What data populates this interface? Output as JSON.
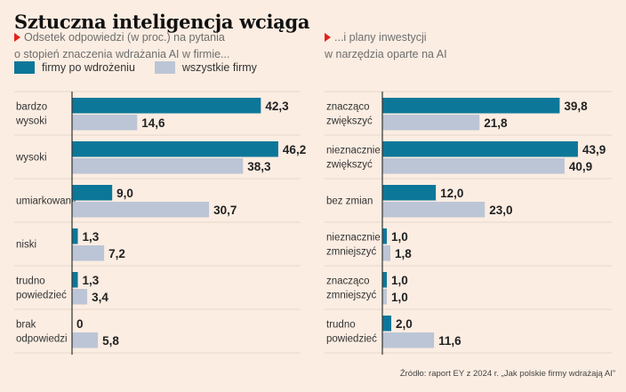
{
  "title": "Sztuczna inteligencja wciąga",
  "left_subtitle": [
    "Odsetek odpowiedzi (w proc.) na pytania",
    "o stopień znaczenia wdrażania AI w firmie..."
  ],
  "right_subtitle": [
    "...i plany inwestycji",
    "w narzędzia oparte na AI"
  ],
  "legend": [
    {
      "label": "firmy po wdrożeniu",
      "color": "#0d7799"
    },
    {
      "label": "wszystkie firmy",
      "color": "#bcc5d6"
    }
  ],
  "source": "Źródło: raport EY z 2024 r. „Jak polskie firmy wdrażają AI”",
  "chart_data": [
    {
      "type": "bar",
      "orientation": "horizontal",
      "title": "Odsetek odpowiedzi (w proc.) na pytania o stopień znaczenia wdrażania AI w firmie...",
      "categories": [
        [
          "bardzo",
          "wysoki"
        ],
        [
          "wysoki"
        ],
        [
          "umiarkowany"
        ],
        [
          "niski"
        ],
        [
          "trudno",
          "powiedzieć"
        ],
        [
          "brak",
          "odpowiedzi"
        ]
      ],
      "series": [
        {
          "name": "firmy po wdrożeniu",
          "values": [
            42.3,
            46.2,
            9.0,
            1.3,
            1.3,
            0
          ],
          "labels": [
            "42,3",
            "46,2",
            "9,0",
            "1,3",
            "1,3",
            "0"
          ]
        },
        {
          "name": "wszystkie firmy",
          "values": [
            14.6,
            38.3,
            30.7,
            7.2,
            3.4,
            5.8
          ],
          "labels": [
            "14,6",
            "38,3",
            "30,7",
            "7,2",
            "3,4",
            "5,8"
          ]
        }
      ],
      "unit": "%",
      "grid": false
    },
    {
      "type": "bar",
      "orientation": "horizontal",
      "title": "...i plany inwestycji w narzędzia oparte na AI",
      "categories": [
        [
          "znacząco",
          "zwiększyć"
        ],
        [
          "nieznacznie",
          "zwiększyć"
        ],
        [
          "bez zmian"
        ],
        [
          "nieznacznie",
          "zmniejszyć"
        ],
        [
          "znacząco",
          "zmniejszyć"
        ],
        [
          "trudno",
          "powiedzieć"
        ]
      ],
      "series": [
        {
          "name": "firmy po wdrożeniu",
          "values": [
            39.8,
            43.9,
            12.0,
            1.0,
            1.0,
            2.0
          ],
          "labels": [
            "39,8",
            "43,9",
            "12,0",
            "1,0",
            "1,0",
            "2,0"
          ]
        },
        {
          "name": "wszystkie firmy",
          "values": [
            21.8,
            40.9,
            23.0,
            1.8,
            1.0,
            11.6
          ],
          "labels": [
            "21,8",
            "40,9",
            "23,0",
            "1,8",
            "1,0",
            "11,6"
          ]
        }
      ],
      "unit": "%",
      "grid": false
    }
  ]
}
